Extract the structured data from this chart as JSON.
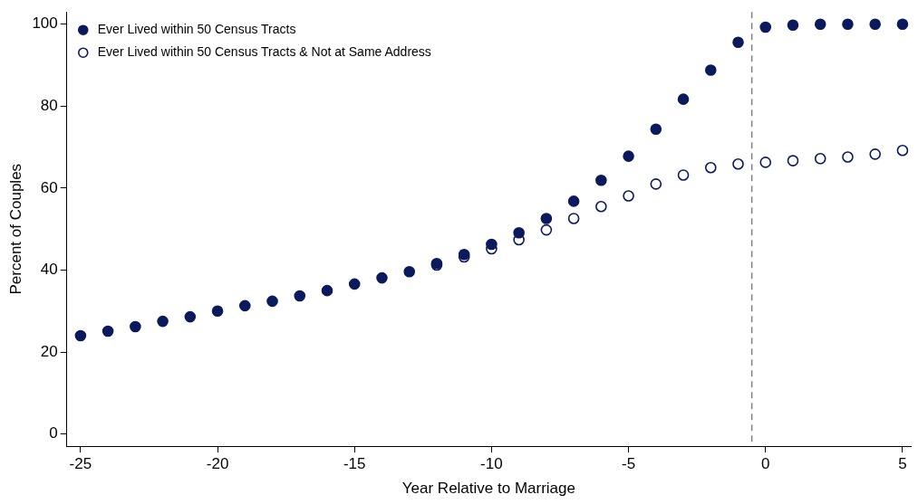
{
  "chart_data": {
    "type": "scatter",
    "xlabel": "Year Relative to Marriage",
    "ylabel": "Percent of Couples",
    "x": [
      -25,
      -24,
      -23,
      -22,
      -21,
      -20,
      -19,
      -18,
      -17,
      -16,
      -15,
      -14,
      -13,
      -12,
      -11,
      -10,
      -9,
      -8,
      -7,
      -6,
      -5,
      -4,
      -3,
      -2,
      -1,
      0,
      1,
      2,
      3,
      4,
      5
    ],
    "series": [
      {
        "name": "Ever Lived within 50 Census Tracts",
        "color": "#0b1a5c",
        "marker": "circle",
        "values": [
          24.0,
          25.1,
          26.2,
          27.5,
          28.6,
          30.0,
          31.3,
          32.4,
          33.7,
          35.0,
          36.6,
          38.1,
          39.6,
          41.6,
          43.8,
          46.3,
          49.1,
          52.6,
          56.8,
          61.9,
          67.8,
          74.4,
          81.7,
          88.8,
          95.6,
          99.3,
          99.8,
          100,
          100,
          100,
          100
        ]
      },
      {
        "name": "Ever Lived within 50 Census Tracts & Not at Same Address",
        "color": "#0b1a5c",
        "marker": "circle",
        "values": [
          null,
          null,
          null,
          null,
          null,
          null,
          null,
          null,
          null,
          null,
          null,
          null,
          null,
          41.2,
          43.2,
          45.2,
          47.4,
          49.8,
          52.6,
          55.5,
          58.1,
          61.0,
          63.2,
          65.0,
          65.9,
          66.3,
          66.7,
          67.2,
          67.6,
          68.3,
          69.2
        ]
      }
    ],
    "xlim": [
      -25.5,
      5.3
    ],
    "xticks": [
      -25,
      -20,
      -15,
      -10,
      -5,
      0,
      5
    ],
    "ylim": [
      -3,
      103
    ],
    "yticks": [
      0,
      20,
      40,
      60,
      80,
      100
    ],
    "grid": false,
    "legend": "top left",
    "ref_lines": [
      {
        "axis": "x",
        "value": -0.5,
        "color": "#808080",
        "line_style": "dashed"
      }
    ]
  }
}
